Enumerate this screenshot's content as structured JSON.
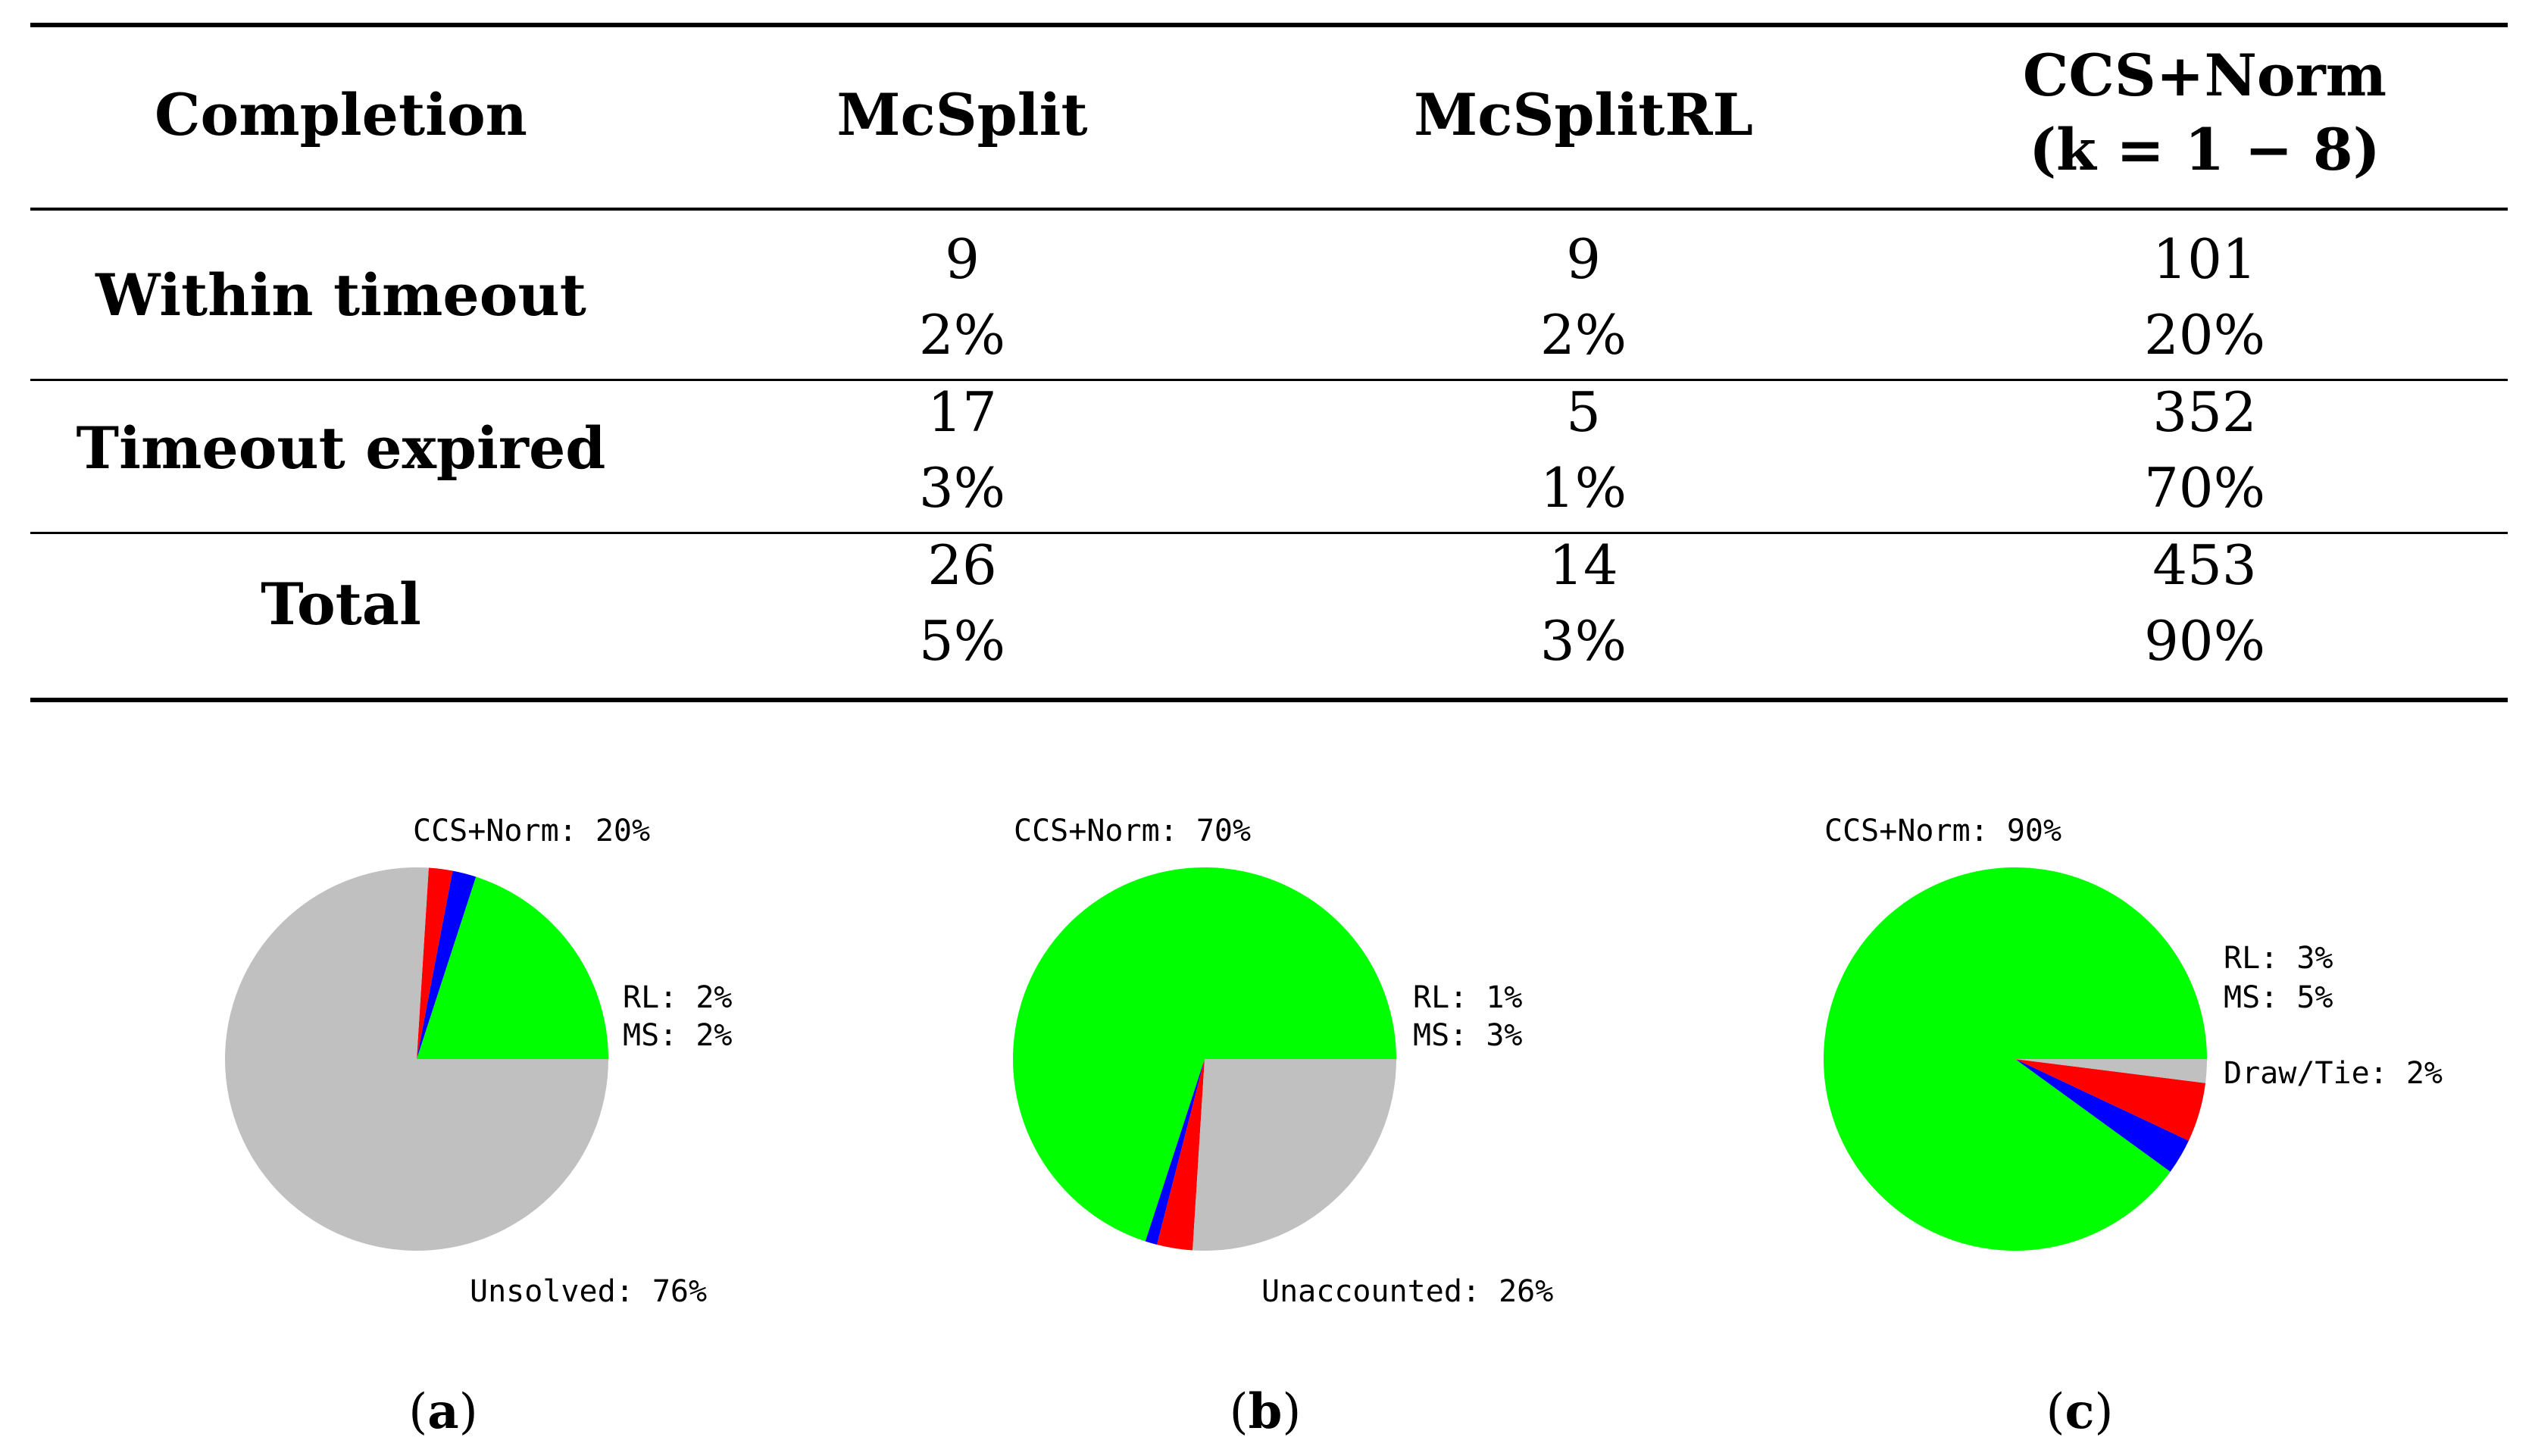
{
  "table": {
    "headers": [
      "Completion",
      "McSplit",
      "McSplitRL",
      "CCS+Norm",
      "(k = 1 − 8)"
    ],
    "rows": [
      {
        "label": "Within timeout",
        "counts": [
          "9",
          "9",
          "101"
        ],
        "pcts": [
          "2%",
          "2%",
          "20%"
        ]
      },
      {
        "label": "Timeout expired",
        "counts": [
          "17",
          "5",
          "352"
        ],
        "pcts": [
          "3%",
          "1%",
          "70%"
        ]
      },
      {
        "label": "Total",
        "counts": [
          "26",
          "14",
          "453"
        ],
        "pcts": [
          "5%",
          "3%",
          "90%"
        ]
      }
    ]
  },
  "colors": {
    "ccs": "#00ff00",
    "rl": "#0000ff",
    "ms": "#ff0000",
    "other": "#c0c0c0"
  },
  "chart_data": [
    {
      "type": "pie",
      "caption": "a",
      "slices": [
        {
          "name": "CCS+Norm",
          "value": 20,
          "label": "CCS+Norm: 20%",
          "color": "#00ff00"
        },
        {
          "name": "RL",
          "value": 2,
          "label": "RL: 2%",
          "color": "#0000ff"
        },
        {
          "name": "MS",
          "value": 2,
          "label": "MS: 2%",
          "color": "#ff0000"
        },
        {
          "name": "Unsolved",
          "value": 76,
          "label": "Unsolved: 76%",
          "color": "#c0c0c0"
        }
      ]
    },
    {
      "type": "pie",
      "caption": "b",
      "slices": [
        {
          "name": "CCS+Norm",
          "value": 70,
          "label": "CCS+Norm: 70%",
          "color": "#00ff00"
        },
        {
          "name": "RL",
          "value": 1,
          "label": "RL: 1%",
          "color": "#0000ff"
        },
        {
          "name": "MS",
          "value": 3,
          "label": "MS: 3%",
          "color": "#ff0000"
        },
        {
          "name": "Unaccounted",
          "value": 26,
          "label": "Unaccounted: 26%",
          "color": "#c0c0c0"
        }
      ]
    },
    {
      "type": "pie",
      "caption": "c",
      "slices": [
        {
          "name": "CCS+Norm",
          "value": 90,
          "label": "CCS+Norm: 90%",
          "color": "#00ff00"
        },
        {
          "name": "RL",
          "value": 3,
          "label": "RL: 3%",
          "color": "#0000ff"
        },
        {
          "name": "MS",
          "value": 5,
          "label": "MS: 5%",
          "color": "#ff0000"
        },
        {
          "name": "Draw/Tie",
          "value": 2,
          "label": "Draw/Tie: 2%",
          "color": "#c0c0c0"
        }
      ]
    }
  ]
}
